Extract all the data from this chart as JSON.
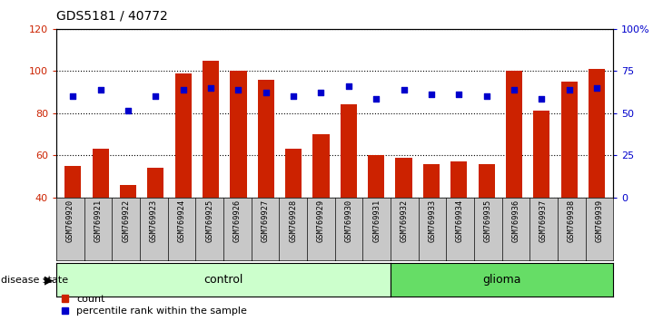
{
  "title": "GDS5181 / 40772",
  "samples": [
    "GSM769920",
    "GSM769921",
    "GSM769922",
    "GSM769923",
    "GSM769924",
    "GSM769925",
    "GSM769926",
    "GSM769927",
    "GSM769928",
    "GSM769929",
    "GSM769930",
    "GSM769931",
    "GSM769932",
    "GSM769933",
    "GSM769934",
    "GSM769935",
    "GSM769936",
    "GSM769937",
    "GSM769938",
    "GSM769939"
  ],
  "counts": [
    55,
    63,
    46,
    54,
    99,
    105,
    100,
    96,
    63,
    70,
    84,
    60,
    59,
    56,
    57,
    56,
    100,
    81,
    95,
    101
  ],
  "percentiles_left_scale": [
    88,
    91,
    81,
    88,
    91,
    92,
    91,
    90,
    88,
    90,
    93,
    87,
    91,
    89,
    89,
    88,
    91,
    87,
    91,
    92
  ],
  "control_count": 12,
  "glioma_count": 8,
  "bar_color": "#cc2200",
  "dot_color": "#0000cc",
  "ylim_left": [
    40,
    120
  ],
  "ylim_right": [
    0,
    100
  ],
  "yticks_left": [
    40,
    60,
    80,
    100,
    120
  ],
  "yticks_right": [
    0,
    25,
    50,
    75,
    100
  ],
  "ytick_labels_right": [
    "0",
    "25",
    "50",
    "75",
    "100%"
  ],
  "control_color": "#ccffcc",
  "glioma_color": "#66dd66",
  "bar_color_red": "#cc2200",
  "dot_color_blue": "#0000cc",
  "legend_count_label": "count",
  "legend_pct_label": "percentile rank within the sample",
  "tick_bg_color": "#c8c8c8",
  "plot_bg_color": "#ffffff",
  "grid_color": "#000000"
}
